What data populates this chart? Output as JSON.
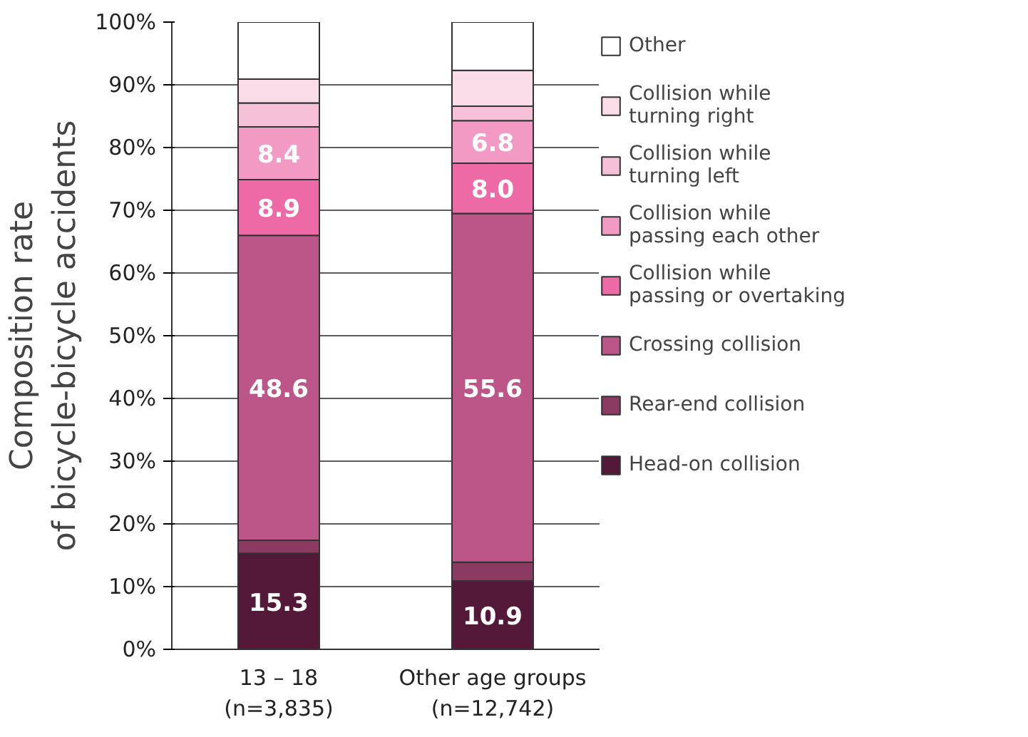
{
  "chart_data": {
    "type": "bar",
    "stacked": true,
    "ylabel": "Composition rate\nof bicycle-bicycle accidents",
    "categories": [
      "13 – 18\n(n=3,835)",
      "Other age groups\n(n=12,742)"
    ],
    "series": [
      {
        "name": "Head-on collision",
        "color": "#541838",
        "values": [
          15.3,
          10.9
        ],
        "value_labels": [
          "15.3",
          "10.9"
        ]
      },
      {
        "name": "Rear-end collision",
        "color": "#8b3a62",
        "values": [
          2.1,
          3.0
        ],
        "value_labels": [
          null,
          null
        ]
      },
      {
        "name": "Crossing collision",
        "color": "#bc5588",
        "values": [
          48.6,
          55.6
        ],
        "value_labels": [
          "48.6",
          "55.6"
        ]
      },
      {
        "name": "Collision while passing or overtaking",
        "color": "#ee6aa7",
        "values": [
          8.9,
          8.0
        ],
        "value_labels": [
          "8.9",
          "8.0"
        ]
      },
      {
        "name": "Collision while passing each other",
        "color": "#f39ac4",
        "values": [
          8.4,
          6.8
        ],
        "value_labels": [
          "8.4",
          "6.8"
        ]
      },
      {
        "name": "Collision while turning left",
        "color": "#f6c0d8",
        "values": [
          3.8,
          2.3
        ],
        "value_labels": [
          null,
          null
        ]
      },
      {
        "name": "Collision while turning right",
        "color": "#fbdde9",
        "values": [
          3.8,
          5.7
        ],
        "value_labels": [
          null,
          null
        ]
      },
      {
        "name": "Other",
        "color": "#ffffff",
        "values": [
          9.1,
          7.7
        ],
        "value_labels": [
          null,
          null
        ]
      }
    ],
    "ylim": [
      0,
      100
    ],
    "yticks": [
      {
        "value": 0,
        "label": "0%"
      },
      {
        "value": 10,
        "label": "10%"
      },
      {
        "value": 20,
        "label": "20%"
      },
      {
        "value": 30,
        "label": "30%"
      },
      {
        "value": 40,
        "label": "40%"
      },
      {
        "value": 50,
        "label": "50%"
      },
      {
        "value": 60,
        "label": "60%"
      },
      {
        "value": 70,
        "label": "70%"
      },
      {
        "value": 80,
        "label": "80%"
      },
      {
        "value": 90,
        "label": "90%"
      },
      {
        "value": 100,
        "label": "100%"
      }
    ],
    "grid": "y",
    "legend": "right"
  }
}
